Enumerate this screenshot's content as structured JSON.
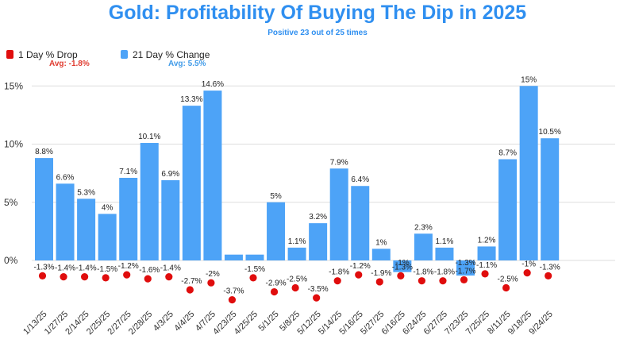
{
  "colors": {
    "bar": "#4da3f7",
    "dot": "#e00d0d",
    "title": "#2f8ff0",
    "avg_drop": "#e03a2e",
    "avg_change": "#3f9ae8",
    "grid": "#dddddd",
    "text": "#222222"
  },
  "chart_data": {
    "type": "bar",
    "title": "Gold: Profitability Of Buying The Dip in 2025",
    "subtitle": "Positive 23 out of 25 times",
    "categories": [
      "1/13/25",
      "1/27/25",
      "2/14/25",
      "2/25/25",
      "2/27/25",
      "2/28/25",
      "4/3/25",
      "4/4/25",
      "4/7/25",
      "4/23/25",
      "4/25/25",
      "5/1/25",
      "5/8/25",
      "5/12/25",
      "5/14/25",
      "5/16/25",
      "5/27/25",
      "6/16/25",
      "6/24/25",
      "6/27/25",
      "7/23/25",
      "7/25/25",
      "8/11/25",
      "9/18/25",
      "9/24/25"
    ],
    "series": [
      {
        "name": "21 Day % Change",
        "kind": "bar",
        "avg_label": "Avg: 5.5%",
        "values": [
          8.8,
          6.6,
          5.3,
          4.0,
          7.1,
          10.1,
          6.9,
          13.3,
          14.6,
          0.5,
          0.5,
          5.0,
          1.1,
          3.2,
          7.9,
          6.4,
          1.0,
          -1.0,
          2.3,
          1.1,
          -1.3,
          1.2,
          8.7,
          15.0,
          10.5
        ],
        "labels": [
          "8.8%",
          "6.6%",
          "5.3%",
          "4%",
          "7.1%",
          "10.1%",
          "6.9%",
          "13.3%",
          "14.6%",
          "",
          "",
          "5%",
          "1.1%",
          "3.2%",
          "7.9%",
          "6.4%",
          "1%",
          "-1%",
          "2.3%",
          "1.1%",
          "-1.3%",
          "1.2%",
          "8.7%",
          "15%",
          "10.5%"
        ]
      },
      {
        "name": "1 Day % Drop",
        "kind": "scatter",
        "avg_label": "Avg: -1.8%",
        "values": [
          -1.3,
          -1.4,
          -1.4,
          -1.5,
          -1.2,
          -1.6,
          -1.4,
          -2.7,
          -2.0,
          -3.7,
          -1.5,
          -2.9,
          -2.5,
          -3.5,
          -1.8,
          -1.2,
          -1.9,
          -1.3,
          -1.8,
          -1.8,
          -1.7,
          -1.1,
          -2.5,
          -1.0,
          -1.3
        ],
        "labels": [
          "-1.3%",
          "-1.4%",
          "-1.4%",
          "-1.5%",
          "-1.2%",
          "-1.6%",
          "-1.4%",
          "-2.7%",
          "-2%",
          "-3.7%",
          "-1.5%",
          "-2.9%",
          "-2.5%",
          "-3.5%",
          "-1.8%",
          "-1.2%",
          "-1.9%",
          "-1.3%",
          "-1.8%",
          "-1.8%",
          "-1.7%",
          "-1.1%",
          "-2.5%",
          "-1%",
          "-1.3%"
        ]
      }
    ],
    "y_ticks": [
      0,
      5,
      10,
      15
    ],
    "y_tick_labels": [
      "0%",
      "5%",
      "10%",
      "15%"
    ],
    "ylim": [
      -4,
      15.5
    ],
    "grid": true,
    "legend_position": "top-left"
  }
}
